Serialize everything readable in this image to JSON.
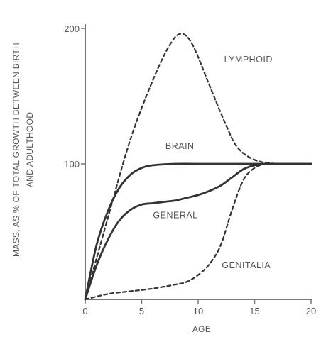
{
  "chart_data": {
    "type": "line",
    "title": "",
    "xlabel": "AGE",
    "ylabel_lines": [
      "MASS, AS % OF TOTAL GROWTH BETWEEN BIRTH",
      "AND ADULTHOOD"
    ],
    "xlim": [
      0,
      20
    ],
    "ylim": [
      0,
      200
    ],
    "x_ticks": [
      {
        "value": 0,
        "label": "0"
      },
      {
        "value": 5,
        "label": "5"
      },
      {
        "value": 10,
        "label": "10"
      },
      {
        "value": 15,
        "label": "15"
      },
      {
        "value": 20,
        "label": "20"
      }
    ],
    "y_ticks": [
      {
        "value": 100,
        "label": "100"
      },
      {
        "value": 200,
        "label": "200"
      }
    ],
    "grid": false,
    "series": [
      {
        "name": "LYMPHOID",
        "dash": "dashed",
        "color": "#333333",
        "label_at": [
          12.3,
          175
        ],
        "points": [
          [
            0,
            0
          ],
          [
            2,
            60
          ],
          [
            4,
            118
          ],
          [
            6,
            162
          ],
          [
            7.5,
            188
          ],
          [
            8.5,
            196
          ],
          [
            9.5,
            188
          ],
          [
            11,
            158
          ],
          [
            12.5,
            128
          ],
          [
            13.5,
            112
          ],
          [
            15,
            103
          ],
          [
            17,
            100
          ],
          [
            20,
            100
          ]
        ]
      },
      {
        "name": "BRAIN",
        "dash": "solid",
        "color": "#333333",
        "label_at": [
          7.1,
          111
        ],
        "points": [
          [
            0,
            0
          ],
          [
            1,
            40
          ],
          [
            2,
            65
          ],
          [
            3,
            82
          ],
          [
            4,
            92
          ],
          [
            5,
            97
          ],
          [
            6,
            99
          ],
          [
            8,
            100
          ],
          [
            10,
            100
          ],
          [
            14,
            100
          ],
          [
            17,
            100
          ],
          [
            20,
            100
          ]
        ]
      },
      {
        "name": "GENERAL",
        "dash": "solid",
        "color": "#333333",
        "label_at": [
          6,
          60
        ],
        "points": [
          [
            0,
            0
          ],
          [
            1,
            25
          ],
          [
            2,
            44
          ],
          [
            3,
            58
          ],
          [
            4,
            66
          ],
          [
            5,
            70
          ],
          [
            6,
            71
          ],
          [
            7,
            72
          ],
          [
            8,
            73
          ],
          [
            9,
            75
          ],
          [
            10,
            77
          ],
          [
            11,
            80
          ],
          [
            12,
            84
          ],
          [
            13,
            90
          ],
          [
            14,
            96
          ],
          [
            15,
            99
          ],
          [
            16,
            100
          ],
          [
            17,
            100
          ],
          [
            20,
            100
          ]
        ]
      },
      {
        "name": "GENITALIA",
        "dash": "dashed",
        "color": "#333333",
        "label_at": [
          12.1,
          23
        ],
        "points": [
          [
            0,
            0
          ],
          [
            2,
            4
          ],
          [
            4,
            6
          ],
          [
            6,
            8
          ],
          [
            8,
            11
          ],
          [
            9,
            13
          ],
          [
            10,
            18
          ],
          [
            11,
            26
          ],
          [
            12,
            40
          ],
          [
            13,
            66
          ],
          [
            14,
            88
          ],
          [
            15,
            97
          ],
          [
            16,
            100
          ],
          [
            17,
            100
          ],
          [
            20,
            100
          ]
        ]
      }
    ]
  }
}
